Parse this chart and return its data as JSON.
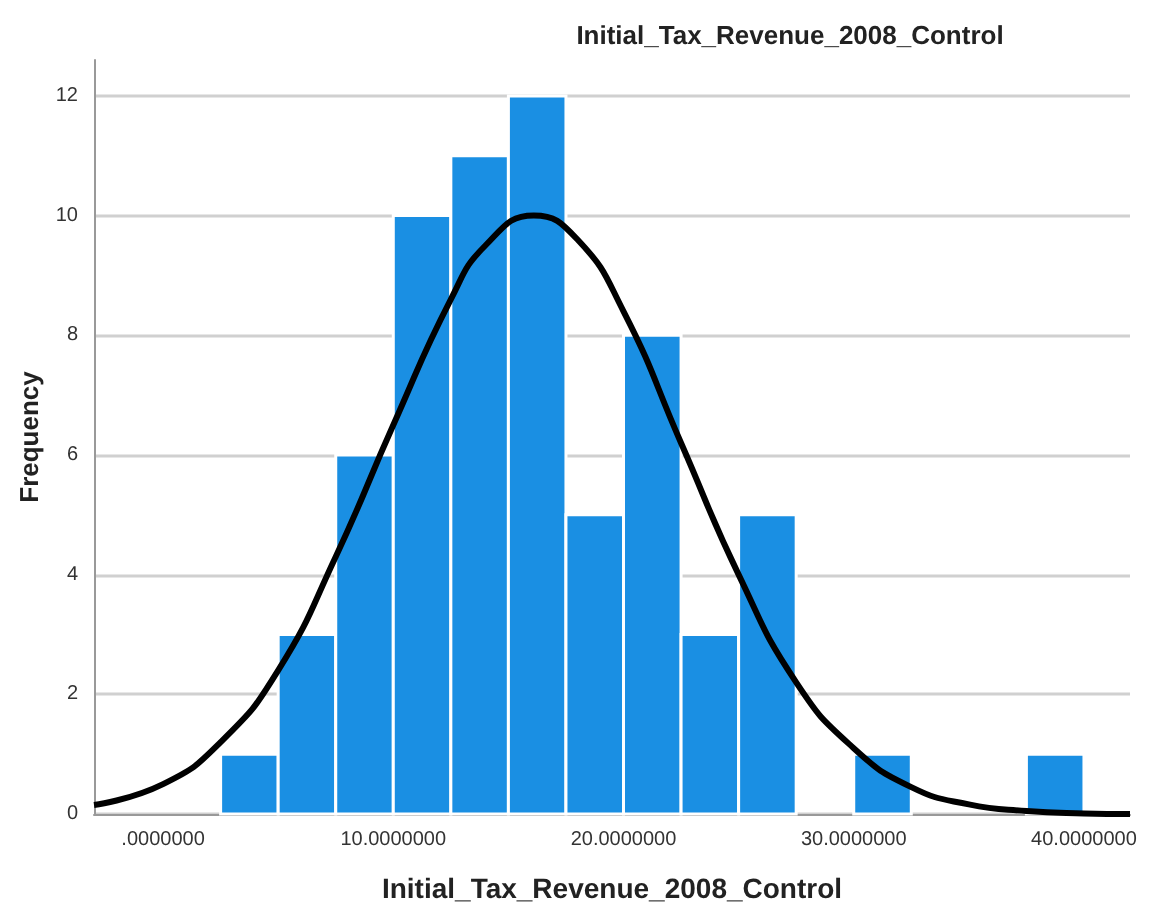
{
  "chart_data": {
    "type": "histogram",
    "title": "Initial_Tax_Revenue_2008_Control",
    "xlabel": "Initial_Tax_Revenue_2008_Control",
    "ylabel": "Frequency",
    "series": [
      {
        "type": "histogram",
        "color": "#1a8fe3",
        "bins": [
          2.5,
          5,
          7.5,
          10,
          12.5,
          15,
          17.5,
          20,
          22.5,
          25,
          27.5,
          30,
          32.5,
          35,
          37.5,
          40
        ],
        "values": [
          1,
          3,
          6,
          10,
          11,
          12,
          5,
          8,
          3,
          5,
          0,
          1,
          0,
          0,
          1
        ]
      },
      {
        "type": "line",
        "color": "#000000",
        "x": [
          -3,
          0,
          2.5,
          5,
          7.5,
          10,
          12.5,
          14,
          16.1,
          18,
          20,
          22.5,
          25,
          27.5,
          30,
          32.5,
          35,
          37.5,
          40,
          42
        ],
        "values": [
          0.15,
          0.5,
          1.2,
          2.4,
          4.3,
          6.5,
          8.6,
          9.5,
          10,
          9.6,
          8.4,
          6.2,
          4,
          2.2,
          1.1,
          0.45,
          0.16,
          0.05,
          0.01,
          0
        ]
      }
    ],
    "xlim": [
      -3,
      42
    ],
    "xticks": [
      {
        "value": 0,
        "label": ".0000000"
      },
      {
        "value": 10,
        "label": "10.0000000"
      },
      {
        "value": 20,
        "label": "20.0000000"
      },
      {
        "value": 30,
        "label": "30.0000000"
      },
      {
        "value": 40,
        "label": "40.0000000"
      }
    ],
    "ylim": [
      0,
      12.6
    ],
    "yticks": [
      0,
      2,
      4,
      6,
      8,
      10,
      12
    ],
    "grid": "y",
    "marker": "none",
    "line_style": "solid"
  }
}
